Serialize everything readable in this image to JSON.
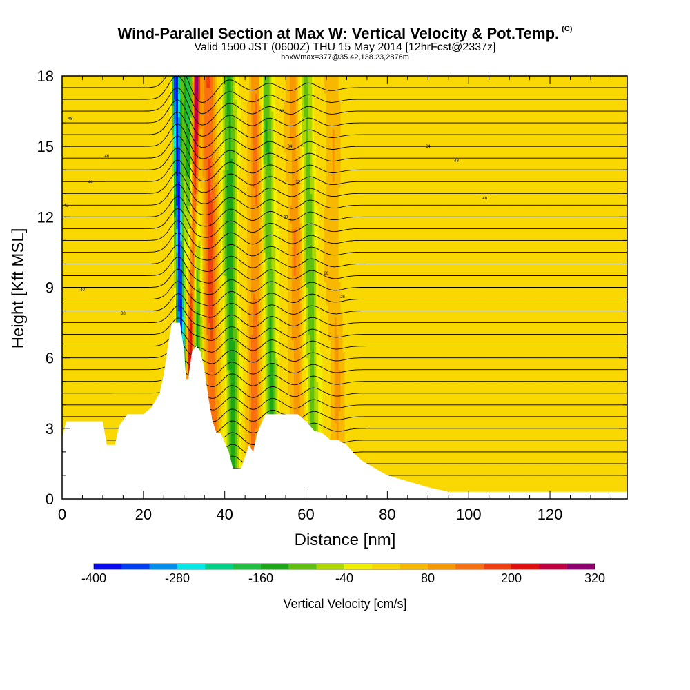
{
  "title": {
    "main": "Wind-Parallel Section at Max W: Vertical Velocity & Pot.Temp.",
    "main_tag": "(C)",
    "subtitle": "Valid 1500 JST (0600Z) THU 15 May 2014 [12hrFcst@2337z]",
    "subtitle2": "boxWmax=377@35.42,138.23,2876m"
  },
  "chart_data": {
    "type": "heatmap",
    "xlabel": "Distance [nm]",
    "ylabel": "Height [Kft MSL]",
    "xlim": [
      0,
      139
    ],
    "ylim": [
      0,
      18
    ],
    "x_ticks": [
      "0",
      "20",
      "40",
      "60",
      "80",
      "100",
      "120"
    ],
    "y_ticks": [
      "0",
      "3",
      "6",
      "9",
      "12",
      "15",
      "18"
    ],
    "colorbar": {
      "label": "Vertical Velocity [cm/s]",
      "tick_labels": [
        "-400",
        "-280",
        "-160",
        "-40",
        "80",
        "200",
        "320"
      ],
      "bins": [
        -400,
        -360,
        -320,
        -280,
        -240,
        -200,
        -160,
        -120,
        -80,
        -40,
        0,
        40,
        80,
        120,
        160,
        200,
        240,
        280,
        320
      ],
      "colors": [
        "#0a0af0",
        "#0040f0",
        "#0090f0",
        "#00e8e8",
        "#00d088",
        "#20c040",
        "#1aa818",
        "#60c010",
        "#b0d800",
        "#f0f000",
        "#f8d800",
        "#f8b800",
        "#f89800",
        "#f87010",
        "#f04010",
        "#e01010",
        "#c00040",
        "#900070"
      ]
    },
    "terrain_kft": [
      [
        0,
        2.6
      ],
      [
        1,
        3.3
      ],
      [
        5,
        3.3
      ],
      [
        10,
        3.3
      ],
      [
        11,
        2.3
      ],
      [
        13,
        2.3
      ],
      [
        14,
        3.1
      ],
      [
        16,
        3.6
      ],
      [
        20,
        3.6
      ],
      [
        22,
        3.9
      ],
      [
        24,
        4.5
      ],
      [
        25,
        5.3
      ],
      [
        26,
        6.5
      ],
      [
        27,
        7.5
      ],
      [
        29,
        7.5
      ],
      [
        30,
        6.3
      ],
      [
        30.5,
        5.1
      ],
      [
        31,
        5.1
      ],
      [
        32,
        6.3
      ],
      [
        33,
        6.5
      ],
      [
        34,
        6.3
      ],
      [
        35,
        5.5
      ],
      [
        36,
        4.3
      ],
      [
        37,
        3.3
      ],
      [
        38,
        2.8
      ],
      [
        39,
        2.8
      ],
      [
        41,
        2.0
      ],
      [
        42,
        1.3
      ],
      [
        44,
        1.3
      ],
      [
        46,
        2.3
      ],
      [
        47,
        2.0
      ],
      [
        48,
        2.8
      ],
      [
        50,
        3.6
      ],
      [
        58,
        3.6
      ],
      [
        60,
        3.3
      ],
      [
        62,
        2.9
      ],
      [
        64,
        2.8
      ],
      [
        66,
        2.5
      ],
      [
        68,
        2.5
      ],
      [
        70,
        2.3
      ],
      [
        72,
        1.9
      ],
      [
        74,
        1.6
      ],
      [
        77,
        1.3
      ],
      [
        80,
        1.0
      ],
      [
        84,
        0.8
      ],
      [
        90,
        0.5
      ],
      [
        95,
        0.3
      ],
      [
        139,
        0.3
      ]
    ],
    "theta_contour_labels": [
      "48",
      "46",
      "44",
      "42",
      "40",
      "38",
      "36",
      "34",
      "32",
      "30",
      "28",
      "26",
      "24"
    ],
    "updrafts_nm": [
      {
        "x_bottom": 31,
        "x_top": 33,
        "peak": 320
      },
      {
        "x_bottom": 37,
        "x_top": 36,
        "peak": 150
      },
      {
        "x_bottom": 47,
        "x_top": 48,
        "peak": 110
      },
      {
        "x_bottom": 58,
        "x_top": 57,
        "peak": 90
      },
      {
        "x_bottom": 68,
        "x_top": 66,
        "peak": 60
      }
    ],
    "downdrafts_nm": [
      {
        "x_bottom": 30,
        "x_top": 28,
        "peak": -400
      },
      {
        "x_bottom": 34,
        "x_top": 31,
        "peak": -200
      },
      {
        "x_bottom": 42,
        "x_top": 41,
        "peak": -160
      },
      {
        "x_bottom": 52,
        "x_top": 50,
        "peak": -140
      },
      {
        "x_bottom": 62,
        "x_top": 60,
        "peak": -120
      }
    ]
  }
}
